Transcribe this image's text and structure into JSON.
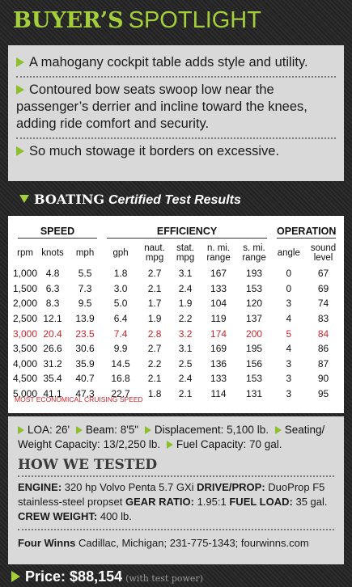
{
  "header": {
    "title_bold": "BUYER’S",
    "title_light": "SPOTLIGHT"
  },
  "highlights": [
    "A mahogany cockpit table adds style and utility.",
    "Contoured bow seats swoop low near the passenger’s derrier and incline toward the knees, adding ride comfort and security.",
    "So much stowage it borders on excessive."
  ],
  "test_results": {
    "brand": "BOATING",
    "title": "Certified Test Results",
    "groups": [
      {
        "label": "SPEED",
        "span": 3
      },
      {
        "label": "EFFICIENCY",
        "span": 5
      },
      {
        "label": "OPERATION",
        "span": 2
      }
    ],
    "columns": [
      "rpm",
      "knots",
      "mph",
      "gph",
      "naut. mpg",
      "stat. mpg",
      "n. mi. range",
      "s. mi. range",
      "angle",
      "sound level"
    ],
    "rows": [
      [
        "1,000",
        "4.8",
        "5.5",
        "1.8",
        "2.7",
        "3.1",
        "167",
        "193",
        "0",
        "67"
      ],
      [
        "1,500",
        "6.3",
        "7.3",
        "3.0",
        "2.1",
        "2.4",
        "133",
        "153",
        "0",
        "69"
      ],
      [
        "2,000",
        "8.3",
        "9.5",
        "5.0",
        "1.7",
        "1.9",
        "104",
        "120",
        "3",
        "74"
      ],
      [
        "2,500",
        "12.1",
        "13.9",
        "6.4",
        "1.9",
        "2.2",
        "119",
        "137",
        "4",
        "83"
      ],
      [
        "3,000",
        "20.4",
        "23.5",
        "7.4",
        "2.8",
        "3.2",
        "174",
        "200",
        "5",
        "84"
      ],
      [
        "3,500",
        "26.6",
        "30.6",
        "9.9",
        "2.7",
        "3.1",
        "169",
        "195",
        "4",
        "86"
      ],
      [
        "4,000",
        "31.2",
        "35.9",
        "14.5",
        "2.2",
        "2.5",
        "136",
        "156",
        "3",
        "87"
      ],
      [
        "4,500",
        "35.4",
        "40.7",
        "16.8",
        "2.1",
        "2.4",
        "133",
        "153",
        "3",
        "90"
      ],
      [
        "5,000",
        "41.1",
        "47.3",
        "22.7",
        "1.8",
        "2.1",
        "114",
        "131",
        "3",
        "95"
      ]
    ],
    "highlight_row": 4,
    "note": "MOST ECONOMICAL CRUISING SPEED"
  },
  "specs": [
    {
      "label": "LOA:",
      "value": "26'"
    },
    {
      "label": "Beam:",
      "value": "8'5\""
    },
    {
      "label": "Displacement:",
      "value": "5,100 lb."
    },
    {
      "label": "Seating/ Weight Capacity:",
      "value": "13/2,250 lb."
    },
    {
      "label": "Fuel Capacity:",
      "value": "70 gal."
    }
  ],
  "how_we_tested": {
    "title": "HOW WE TESTED",
    "items": [
      {
        "label": "ENGINE:",
        "text": "320 hp Volvo Penta 5.7 GXi"
      },
      {
        "label": "DRIVE/PROP:",
        "text": "DuoProp F5 stainless-steel propset"
      },
      {
        "label": "GEAR RATIO:",
        "text": "1.95:1"
      },
      {
        "label": "FUEL LOAD:",
        "text": "35 gal."
      },
      {
        "label": "CREW WEIGHT:",
        "text": "400 lb."
      }
    ]
  },
  "contact": {
    "brand": "Four Winns",
    "text": "Cadillac, Michigan; 231-775-1343; fourwinns.com"
  },
  "price": {
    "label": "Price:",
    "value": "$88,154",
    "note": "(with test power)"
  }
}
